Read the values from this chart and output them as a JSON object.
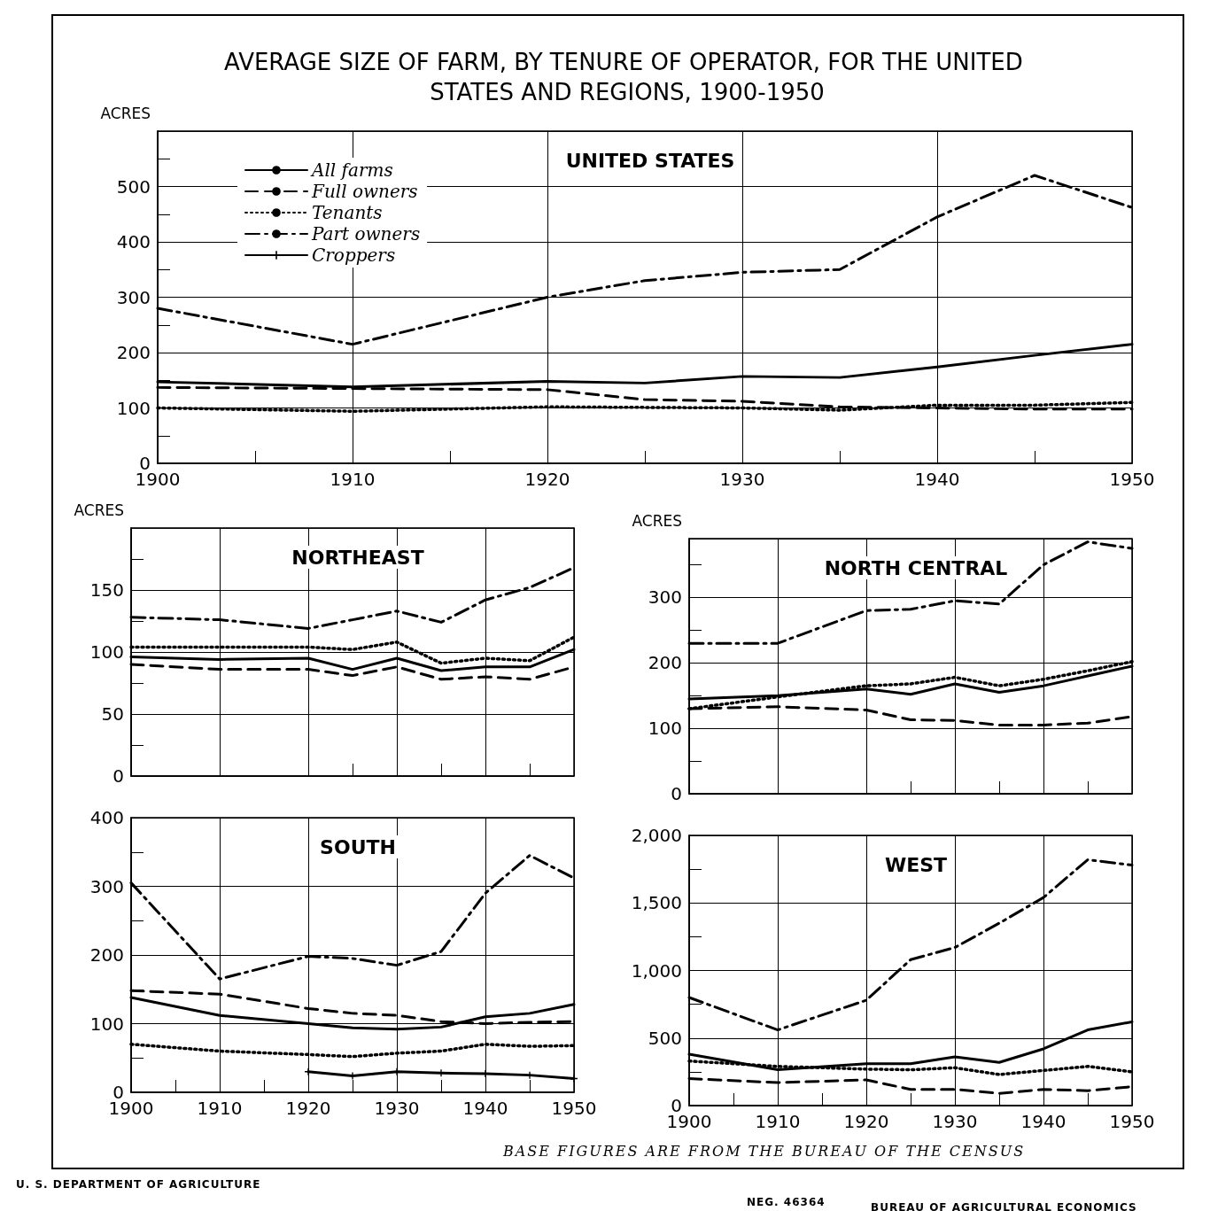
{
  "chart_data": [
    {
      "type": "line",
      "title": "AVERAGE SIZE OF FARM, BY TENURE OF OPERATOR, FOR THE UNITED STATES AND REGIONS, 1900-1950",
      "subtitle": "UNITED STATES",
      "ylabel": "ACRES",
      "annotations": [
        "BASE FIGURES ARE FROM THE BUREAU OF THE CENSUS",
        "U. S. DEPARTMENT OF AGRICULTURE",
        "NEG. 46364",
        "BUREAU OF AGRICULTURAL ECONOMICS"
      ],
      "x": [
        1900,
        1910,
        1920,
        1925,
        1930,
        1935,
        1940,
        1945,
        1950
      ],
      "xlim": [
        1900,
        1950
      ],
      "xticks": [
        1900,
        {
          "value": 1905,
          "label": null
        },
        1910,
        {
          "value": 1915,
          "label": null
        },
        1920,
        {
          "value": 1925,
          "label": null
        },
        1930,
        {
          "value": 1935,
          "label": null
        },
        1940,
        {
          "value": 1945,
          "label": null
        },
        1950
      ],
      "ylim": [
        0,
        600
      ],
      "yticks": [
        0,
        {
          "value": 50,
          "label": null
        },
        100,
        {
          "value": 150,
          "label": null
        },
        200,
        {
          "value": 250,
          "label": null
        },
        300,
        {
          "value": 350,
          "label": null
        },
        400,
        {
          "value": 450,
          "label": null
        },
        500,
        {
          "value": 550,
          "label": null
        }
      ],
      "grid": true,
      "legend": "top left",
      "series": [
        {
          "name": "All farms",
          "color": "#000000",
          "line_style": "solid",
          "values": [
            147,
            138,
            148,
            145,
            157,
            155,
            174,
            195,
            215
          ]
        },
        {
          "name": "Full owners",
          "color": "#000000",
          "line_style": "dashed",
          "values": [
            137,
            135,
            133,
            115,
            112,
            102,
            100,
            98,
            98
          ]
        },
        {
          "name": "Tenants",
          "color": "#000000",
          "line_style": "dotted",
          "values": [
            100,
            94,
            102,
            101,
            100,
            96,
            105,
            105,
            110
          ]
        },
        {
          "name": "Part owners",
          "color": "#000000",
          "line_style": "dashdot",
          "values": [
            280,
            215,
            300,
            330,
            345,
            350,
            445,
            520,
            462
          ]
        },
        {
          "name": "Croppers",
          "color": "#000000",
          "line_style": "solid",
          "marker": "cross",
          "values": [
            null,
            null,
            null,
            null,
            null,
            null,
            null,
            null,
            null
          ]
        }
      ]
    },
    {
      "type": "line",
      "title": "NORTHEAST",
      "ylabel": "ACRES",
      "tick_labels": "y",
      "x": [
        1900,
        1910,
        1920,
        1925,
        1930,
        1935,
        1940,
        1945,
        1950
      ],
      "xlim": [
        1900,
        1950
      ],
      "xticks": [
        1900,
        1910,
        1920,
        {
          "value": 1925,
          "label": null
        },
        1930,
        {
          "value": 1935,
          "label": null
        },
        1940,
        {
          "value": 1945,
          "label": null
        },
        1950
      ],
      "ylim": [
        0,
        200
      ],
      "yticks": [
        0,
        {
          "value": 25,
          "label": null
        },
        50,
        {
          "value": 75,
          "label": null
        },
        100,
        {
          "value": 125,
          "label": null
        },
        150,
        {
          "value": 175,
          "label": null
        }
      ],
      "grid": true,
      "series": [
        {
          "color": "#000000",
          "line_style": "solid",
          "values": [
            96,
            94,
            95,
            86,
            95,
            85,
            88,
            88,
            102
          ]
        },
        {
          "color": "#000000",
          "line_style": "dashed",
          "values": [
            90,
            86,
            86,
            81,
            88,
            78,
            80,
            78,
            88
          ]
        },
        {
          "color": "#000000",
          "line_style": "dotted",
          "values": [
            104,
            104,
            104,
            102,
            108,
            91,
            95,
            93,
            112
          ]
        },
        {
          "color": "#000000",
          "line_style": "dashdot",
          "values": [
            128,
            126,
            119,
            126,
            133,
            124,
            142,
            152,
            168
          ]
        }
      ]
    },
    {
      "type": "line",
      "title": "NORTH CENTRAL",
      "ylabel": "ACRES",
      "tick_labels": "y",
      "x": [
        1900,
        1910,
        1920,
        1925,
        1930,
        1935,
        1940,
        1945,
        1950
      ],
      "xlim": [
        1900,
        1950
      ],
      "xticks": [
        1900,
        1910,
        1920,
        {
          "value": 1925,
          "label": null
        },
        1930,
        {
          "value": 1935,
          "label": null
        },
        1940,
        {
          "value": 1945,
          "label": null
        },
        1950
      ],
      "ylim": [
        0,
        390
      ],
      "yticks": [
        0,
        {
          "value": 50,
          "label": null
        },
        100,
        {
          "value": 150,
          "label": null
        },
        200,
        {
          "value": 250,
          "label": null
        },
        300,
        {
          "value": 350,
          "label": null
        }
      ],
      "grid": true,
      "series": [
        {
          "color": "#000000",
          "line_style": "solid",
          "values": [
            145,
            150,
            160,
            152,
            168,
            155,
            165,
            180,
            195
          ]
        },
        {
          "color": "#000000",
          "line_style": "dashed",
          "values": [
            130,
            133,
            128,
            113,
            112,
            105,
            105,
            108,
            118
          ]
        },
        {
          "color": "#000000",
          "line_style": "dotted",
          "values": [
            130,
            148,
            165,
            168,
            178,
            165,
            175,
            188,
            202
          ]
        },
        {
          "color": "#000000",
          "line_style": "dashdot",
          "values": [
            230,
            230,
            280,
            282,
            295,
            290,
            350,
            385,
            375
          ]
        }
      ]
    },
    {
      "type": "line",
      "title": "SOUTH",
      "x": [
        1900,
        1910,
        1920,
        1925,
        1930,
        1935,
        1940,
        1945,
        1950
      ],
      "xlim": [
        1900,
        1950
      ],
      "xticks": [
        1900,
        {
          "value": 1905,
          "label": null
        },
        1910,
        {
          "value": 1915,
          "label": null
        },
        1920,
        {
          "value": 1925,
          "label": null
        },
        1930,
        {
          "value": 1935,
          "label": null
        },
        1940,
        {
          "value": 1945,
          "label": null
        },
        1950
      ],
      "ylim": [
        0,
        400
      ],
      "yticks": [
        0,
        {
          "value": 50,
          "label": null
        },
        100,
        {
          "value": 150,
          "label": null
        },
        200,
        {
          "value": 250,
          "label": null
        },
        300,
        {
          "value": 350,
          "label": null
        },
        400
      ],
      "grid": true,
      "series": [
        {
          "color": "#000000",
          "line_style": "solid",
          "values": [
            138,
            112,
            100,
            94,
            92,
            95,
            110,
            115,
            128
          ]
        },
        {
          "color": "#000000",
          "line_style": "dashed",
          "values": [
            148,
            143,
            122,
            115,
            112,
            103,
            100,
            102,
            103
          ]
        },
        {
          "color": "#000000",
          "line_style": "dotted",
          "values": [
            70,
            60,
            55,
            52,
            57,
            60,
            70,
            67,
            68
          ]
        },
        {
          "color": "#000000",
          "line_style": "dashdot",
          "values": [
            305,
            165,
            198,
            195,
            185,
            205,
            290,
            345,
            312
          ]
        },
        {
          "color": "#000000",
          "line_style": "solid",
          "marker": "cross",
          "values": [
            null,
            null,
            30,
            24,
            30,
            28,
            27,
            25,
            20
          ]
        }
      ]
    },
    {
      "type": "line",
      "title": "WEST",
      "x": [
        1900,
        1910,
        1920,
        1925,
        1930,
        1935,
        1940,
        1945,
        1950
      ],
      "xlim": [
        1900,
        1950
      ],
      "xticks": [
        1900,
        {
          "value": 1905,
          "label": null
        },
        1910,
        {
          "value": 1915,
          "label": null
        },
        1920,
        {
          "value": 1925,
          "label": null
        },
        1930,
        {
          "value": 1935,
          "label": null
        },
        1940,
        {
          "value": 1945,
          "label": null
        },
        1950
      ],
      "ylim": [
        0,
        2000
      ],
      "yticks": [
        0,
        {
          "value": 250,
          "label": null
        },
        500,
        {
          "value": 750,
          "label": null
        },
        {
          "value": 1000,
          "label": "1,000"
        },
        {
          "value": 1250,
          "label": null
        },
        {
          "value": 1500,
          "label": "1,500"
        },
        {
          "value": 1750,
          "label": null
        },
        {
          "value": 2000,
          "label": "2,000"
        }
      ],
      "grid": true,
      "series": [
        {
          "color": "#000000",
          "line_style": "solid",
          "values": [
            380,
            265,
            310,
            310,
            360,
            320,
            420,
            560,
            620
          ]
        },
        {
          "color": "#000000",
          "line_style": "dashed",
          "values": [
            200,
            170,
            190,
            120,
            120,
            90,
            120,
            110,
            140
          ]
        },
        {
          "color": "#000000",
          "line_style": "dotted",
          "values": [
            330,
            290,
            270,
            265,
            280,
            230,
            260,
            290,
            250
          ]
        },
        {
          "color": "#000000",
          "line_style": "dashdot",
          "values": [
            800,
            560,
            780,
            1080,
            1170,
            1350,
            1540,
            1820,
            1780
          ]
        }
      ]
    }
  ]
}
